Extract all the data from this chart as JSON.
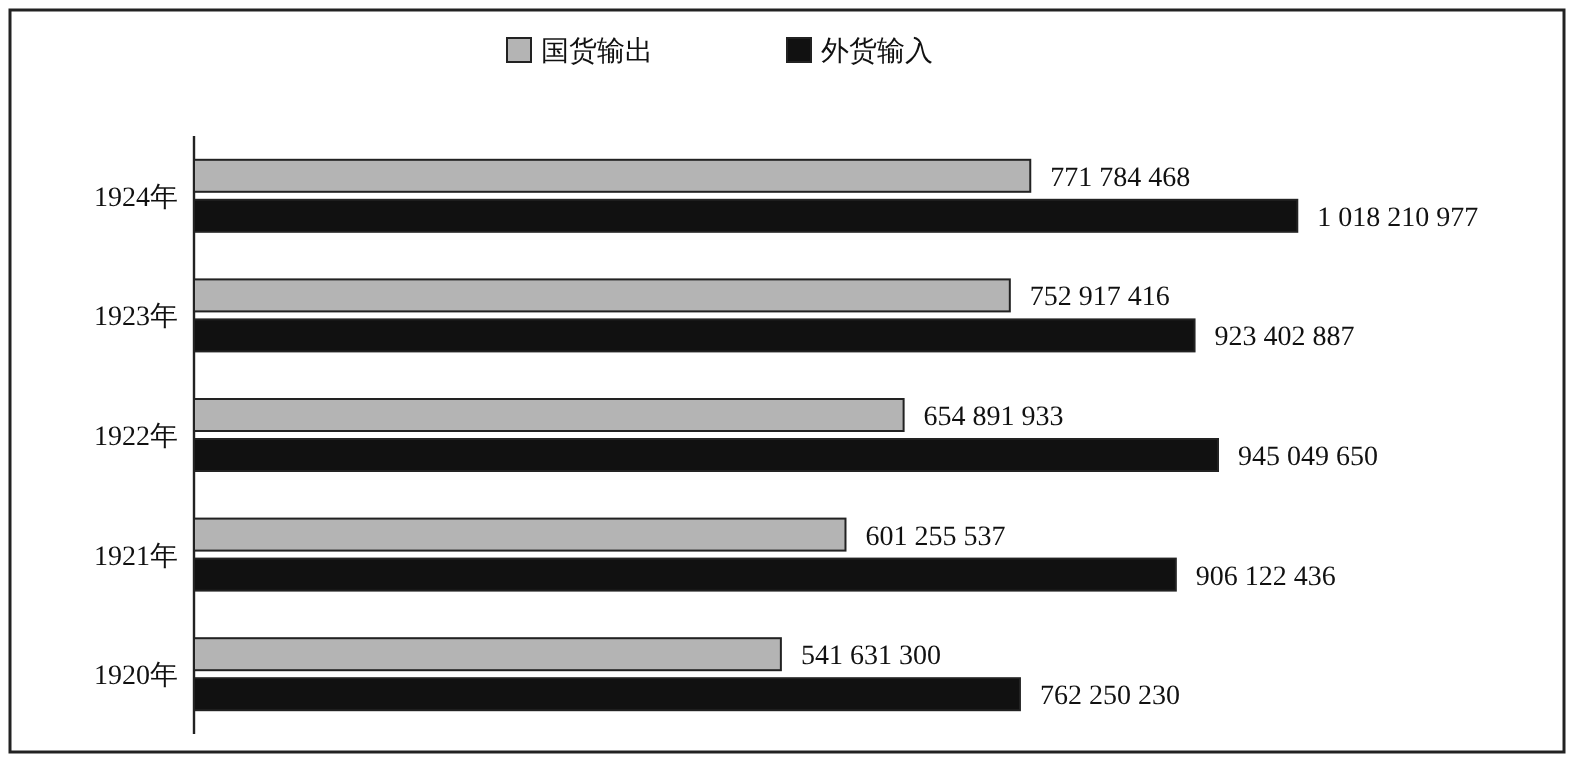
{
  "chart_data": {
    "type": "bar",
    "orientation": "horizontal",
    "legend": "top",
    "categories": [
      "1924年",
      "1923年",
      "1922年",
      "1921年",
      "1920年"
    ],
    "series": [
      {
        "name": "国货输出",
        "color": "#b4b4b4",
        "values": [
          771784468,
          752917416,
          654891933,
          601255537,
          541631300
        ],
        "value_labels": [
          "771 784 468",
          "752 917 416",
          "654 891 933",
          "601 255 537",
          "541 631 300"
        ]
      },
      {
        "name": "外货输入",
        "color": "#111111",
        "values": [
          1018210977,
          923402887,
          945049650,
          906122436,
          762250230
        ],
        "value_labels": [
          "1 018 210 977",
          "923 402 887",
          "945 049 650",
          "906 122 436",
          "762 250 230"
        ]
      }
    ]
  }
}
